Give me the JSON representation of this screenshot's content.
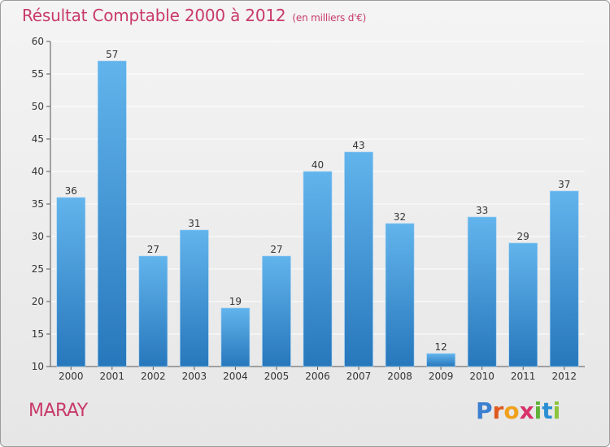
{
  "page": {
    "commune": "MARAY",
    "brand_letters": [
      "P",
      "r",
      "o",
      "x",
      "i",
      "t",
      "i"
    ],
    "brand_colors": [
      "#3a7fd0",
      "#e05a1f",
      "#f0a11c",
      "#d8326a",
      "#5fb236",
      "#2c8fd4",
      "#8ac43a"
    ],
    "colors": {
      "bar_top": "#62b4ec",
      "bar_bottom": "#2777bc",
      "accent": "#c83a6a",
      "grid": "#ffffff"
    }
  },
  "chart_data": {
    "type": "bar",
    "title": "Résultat Comptable 2000 à 2012",
    "subtitle": "(en milliers d'€)",
    "xlabel": "",
    "ylabel": "",
    "categories": [
      "2000",
      "2001",
      "2002",
      "2003",
      "2004",
      "2005",
      "2006",
      "2007",
      "2008",
      "2009",
      "2010",
      "2011",
      "2012"
    ],
    "values": [
      36,
      57,
      27,
      31,
      19,
      27,
      40,
      43,
      32,
      12,
      33,
      29,
      37
    ],
    "data_labels": [
      "36",
      "57",
      "27",
      "31",
      "19",
      "27",
      "40",
      "43",
      "32",
      "12",
      "33",
      "29",
      "37"
    ],
    "ylim": [
      10,
      60
    ],
    "yticks": [
      "10",
      "15",
      "20",
      "25",
      "30",
      "35",
      "40",
      "45",
      "50",
      "55",
      "60"
    ],
    "grid": true
  }
}
